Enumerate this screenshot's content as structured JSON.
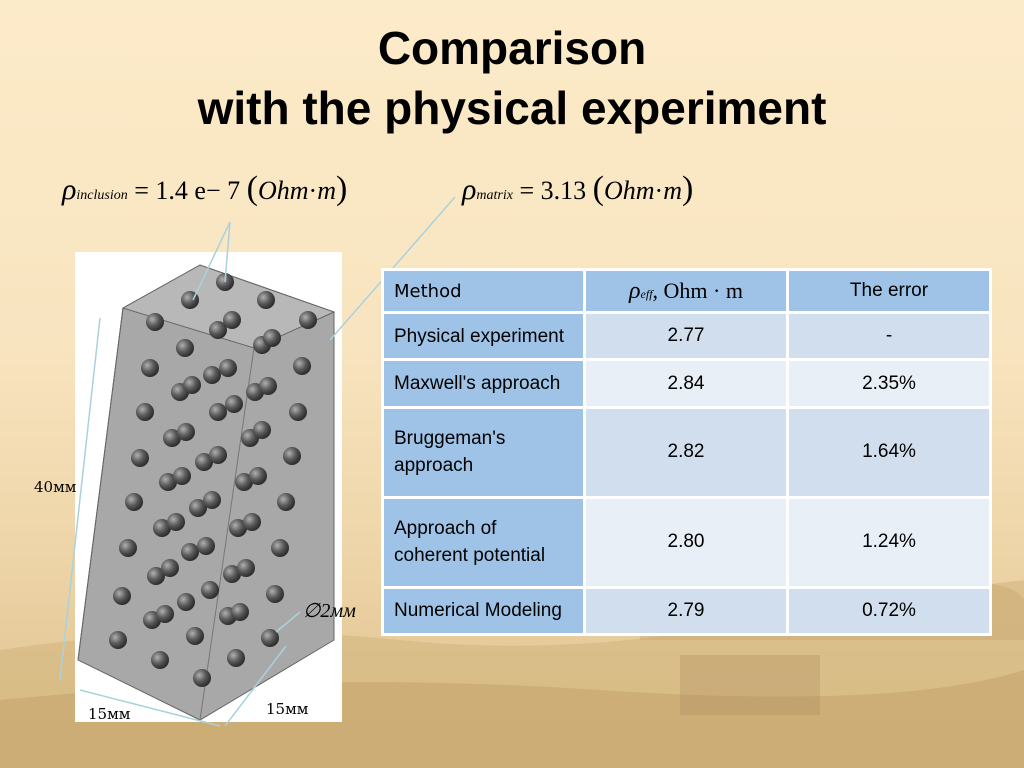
{
  "title": {
    "line1": "Comparison",
    "line2": "with the physical experiment"
  },
  "formulas": {
    "inclusion": {
      "symbol": "ρ",
      "subscript": "inclusion",
      "value": "= 1.4 e− 7",
      "unit_a": "Ohm",
      "unit_dot": "·",
      "unit_b": "m"
    },
    "matrix": {
      "symbol": "ρ",
      "subscript": "matrix",
      "value": "= 3.13",
      "unit_a": "Ohm",
      "unit_dot": "·",
      "unit_b": "m"
    }
  },
  "figure": {
    "height_label": "40мм",
    "width_label_left": "15мм",
    "width_label_right": "15мм",
    "diameter_label": "∅2мм",
    "colors": {
      "block_face": "#a3a3a3",
      "block_top": "#b8b8b8",
      "sphere": "#555555",
      "annotation_line": "#a9d2de"
    }
  },
  "table": {
    "headers": {
      "method": "Method",
      "rho_symbol": "ρ",
      "rho_sub": "eff",
      "rho_unit": ", Ohm · m",
      "error": "The error"
    },
    "rows": [
      {
        "method": "Physical experiment",
        "value": "2.77",
        "error": "-"
      },
      {
        "method": "Maxwell's approach",
        "value": "2.84",
        "error": "2.35%"
      },
      {
        "method": "Bruggeman's approach",
        "value": "2.82",
        "error": "1.64%"
      },
      {
        "method": "Approach of coherent potential",
        "value": "2.80",
        "error": "1.24%"
      },
      {
        "method": "Numerical Modeling",
        "value": "2.79",
        "error": "0.72%"
      }
    ],
    "colors": {
      "header_bg": "#9ec3e6",
      "row_dark": "#d1deee",
      "row_light": "#e9eff7"
    }
  }
}
